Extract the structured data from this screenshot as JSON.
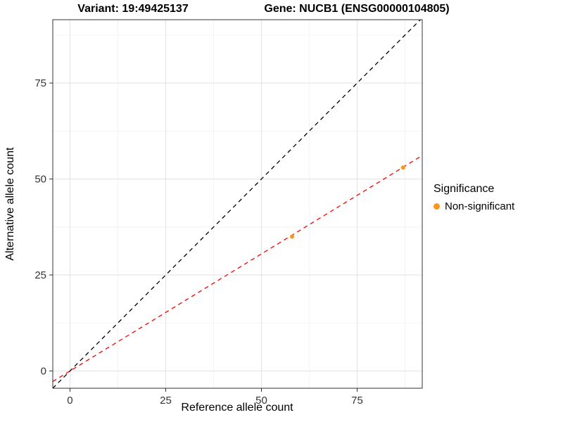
{
  "chart_data": {
    "type": "scatter",
    "title_variant": "Variant: 19:49425137",
    "title_gene": "Gene: NUCB1 (ENSG00000104805)",
    "xlabel": "Reference allele count",
    "ylabel": "Alternative allele count",
    "xlim": [
      -4.5,
      92
    ],
    "ylim": [
      -4.5,
      91.5
    ],
    "x_ticks": [
      0,
      25,
      50,
      75
    ],
    "y_ticks": [
      0,
      25,
      50,
      75
    ],
    "x_minor_ticks": [
      12.5,
      37.5,
      62.5,
      87.5
    ],
    "y_minor_ticks": [
      12.5,
      37.5,
      62.5,
      87.5
    ],
    "grid": true,
    "legend_position": "right",
    "points": [
      {
        "x": 58,
        "y": 35,
        "series": "Non-significant"
      },
      {
        "x": 87,
        "y": 53,
        "series": "Non-significant"
      }
    ],
    "lines": [
      {
        "name": "identity-line",
        "slope": 1,
        "intercept": 0,
        "color": "#000000",
        "style": "dashed"
      },
      {
        "name": "fit-line",
        "slope": 0.61,
        "intercept": 0,
        "color": "#FF0000",
        "style": "dashed"
      }
    ],
    "legend": {
      "title": "Significance",
      "items": [
        {
          "label": "Non-significant",
          "color": "#F8961D"
        }
      ]
    },
    "colors": {
      "point": "#F8961D",
      "grid_major": "#E4E4E4",
      "grid_minor": "#F2F2F2",
      "panel_border": "#333333",
      "tick_text": "#333333",
      "tick_mark": "#333333"
    }
  }
}
